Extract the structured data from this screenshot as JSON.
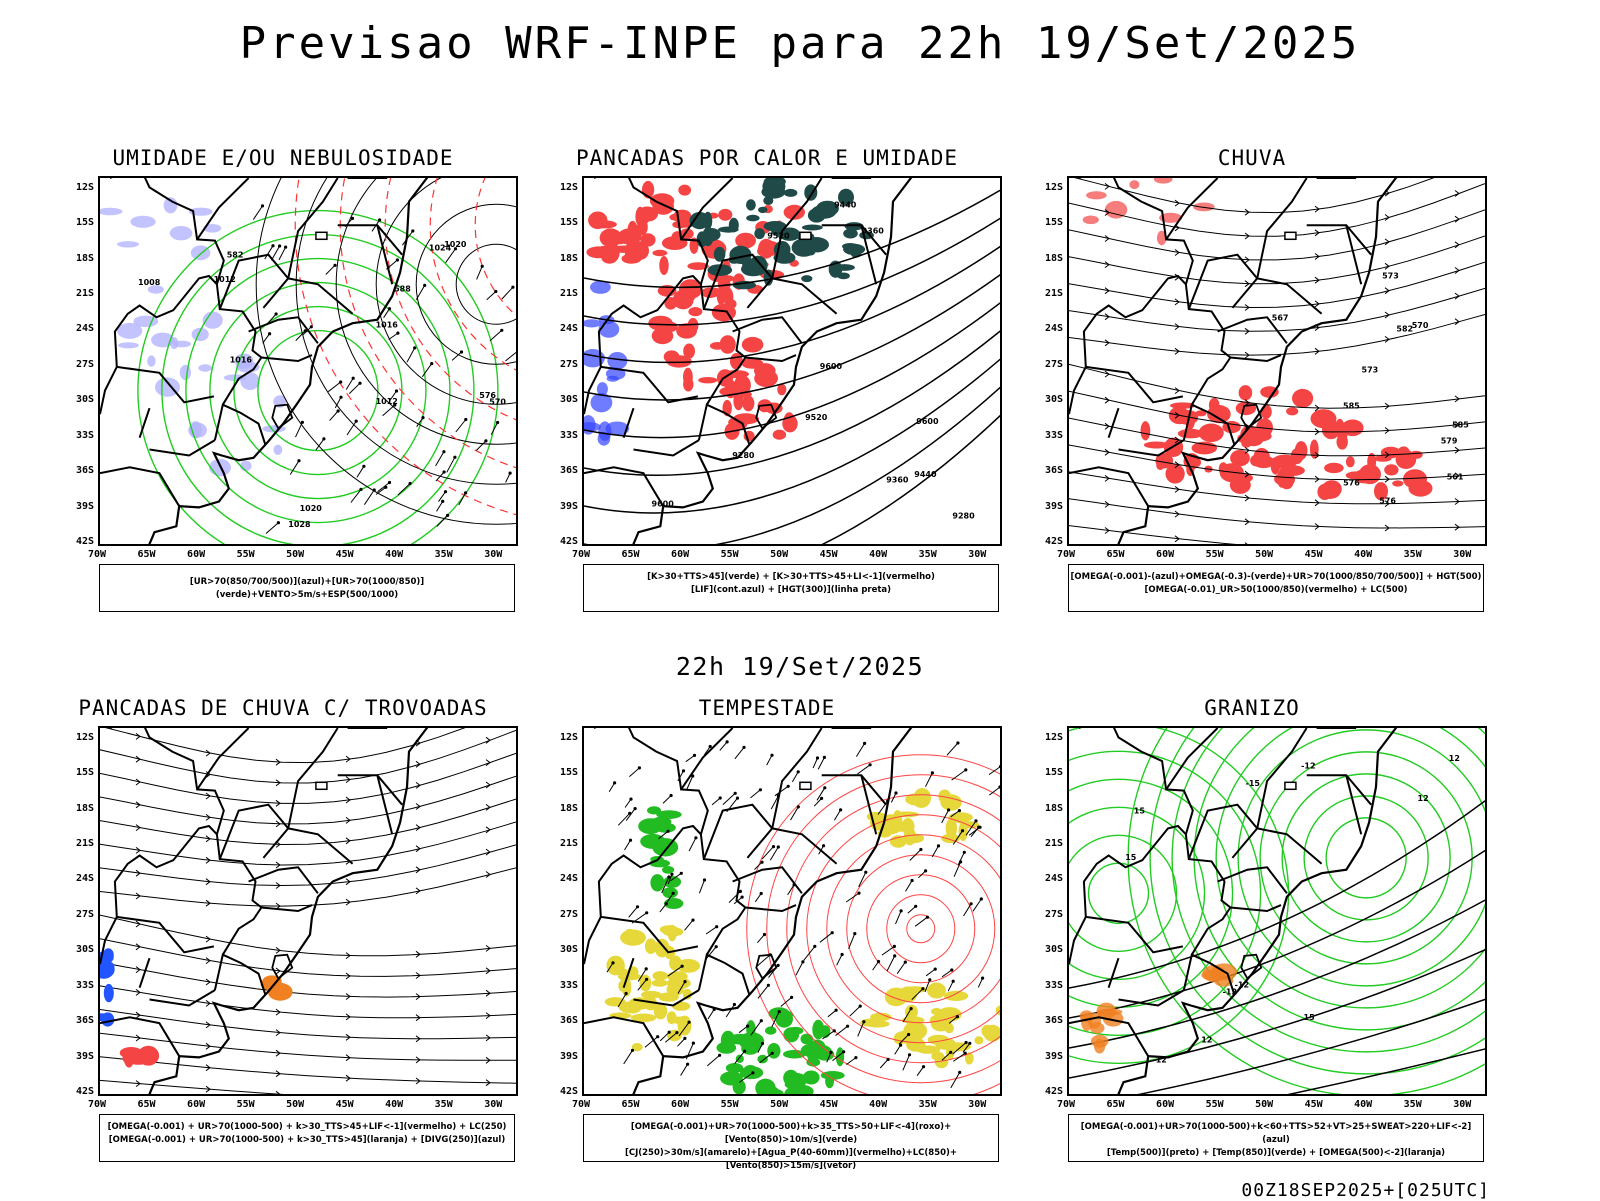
{
  "title": "Previsao WRF-INPE  para 22h 19/Set/2025",
  "subtitle": "22h 19/Set/2025",
  "footer": "00Z18SEP2025+[025UTC]",
  "axes": {
    "lat_ticks": [
      "12S",
      "15S",
      "18S",
      "21S",
      "24S",
      "27S",
      "30S",
      "33S",
      "36S",
      "39S",
      "42S"
    ],
    "lon_ticks": [
      "70W",
      "65W",
      "60W",
      "55W",
      "50W",
      "45W",
      "40W",
      "35W",
      "30W"
    ]
  },
  "panels": [
    {
      "id": "umidade",
      "title": "UMIDADE E/OU NEBULOSIDADE",
      "legend_lines": [
        "[UR>70(850/700/500)](azul)+[UR>70(1000/850)](verde)+VENTO>5m/s+ESP(500/1000)"
      ],
      "contour_labels": [
        "1008",
        "1012",
        "1016",
        "1020",
        "1024",
        "1028",
        "1012",
        "1016",
        "1020",
        "570",
        "576",
        "582",
        "588"
      ],
      "colors": {
        "azul": "#b4b4ff",
        "verde": "#22cc22",
        "vermelho": "#ff3333"
      }
    },
    {
      "id": "pancadas-calor",
      "title": "PANCADAS POR CALOR E UMIDADE",
      "legend_lines": [
        "[K>30+TTS>45](verde) + [K>30+TTS>45+LI<-1](vermelho)",
        "[LIF](cont.azul) + [HGT(300)](linha preta)"
      ],
      "contour_labels": [
        "9600",
        "9600",
        "9600",
        "9520",
        "9520",
        "9440",
        "9440",
        "9360",
        "9360",
        "9280",
        "9280"
      ],
      "colors": {
        "verde": "#1f4a48",
        "vermelho": "#f44444",
        "azul": "#3344ff"
      }
    },
    {
      "id": "chuva",
      "title": "CHUVA",
      "legend_lines": [
        "[OMEGA(-0.001)-(azul)+OMEGA(-0.3)-(verde)+UR>70(1000/850/700/500)] + HGT(500)",
        "[OMEGA(-0.01)_UR>50(1000/850)(vermelho) + LC(500)"
      ],
      "contour_labels": [
        "585",
        "585",
        "582",
        "579",
        "576",
        "573",
        "570",
        "567",
        "561",
        "576",
        "573"
      ],
      "colors": {
        "vermelho": "#f44444",
        "azul": "#2244ff",
        "verde": "#22aa22"
      }
    },
    {
      "id": "pancadas-trovoadas",
      "title": "PANCADAS DE CHUVA C/ TROVOADAS",
      "legend_lines": [
        "[OMEGA(-0.001) + UR>70(1000-500) + k>30_TTS>45+LIF<-1](vermelho) + LC(250)",
        "[OMEGA(-0.001) + UR>70(1000-500) + k>30_TTS>45](laranja) + [DIVG(250)](azul)"
      ],
      "colors": {
        "vermelho": "#f44444",
        "laranja": "#f08020",
        "azul": "#2255ff"
      }
    },
    {
      "id": "tempestade",
      "title": "TEMPESTADE",
      "legend_lines": [
        "[OMEGA(-0.001)+UR>70(1000-500)+k>35_TTS>50+LIF<-4](roxo)+[Vento(850)>10m/s](verde)",
        "[CJ(250)>30m/s](amarelo)+[Agua_P(40-60mm)](vermelho)+LC(850)+[Vento(850)>15m/s](vetor)"
      ],
      "colors": {
        "amarelo": "#e6d83a",
        "verde": "#22bb22",
        "vermelho": "#ff4444"
      }
    },
    {
      "id": "granizo",
      "title": "GRANIZO",
      "legend_lines": [
        "[OMEGA(-0.001)+UR>70(1000-500)+k<60+TTS>52+VT>25+SWEAT>220+LIF<-2](azul)",
        "[Temp(500)](preto) + [Temp(850)](verde) + [OMEGA(500)<-2](laranja)"
      ],
      "contour_labels": [
        "-12",
        "-12",
        "-12",
        "-12",
        "-15",
        "12",
        "12",
        "12",
        "15",
        "15",
        "15"
      ],
      "colors": {
        "verde": "#22cc22",
        "laranja": "#f08020"
      }
    }
  ]
}
